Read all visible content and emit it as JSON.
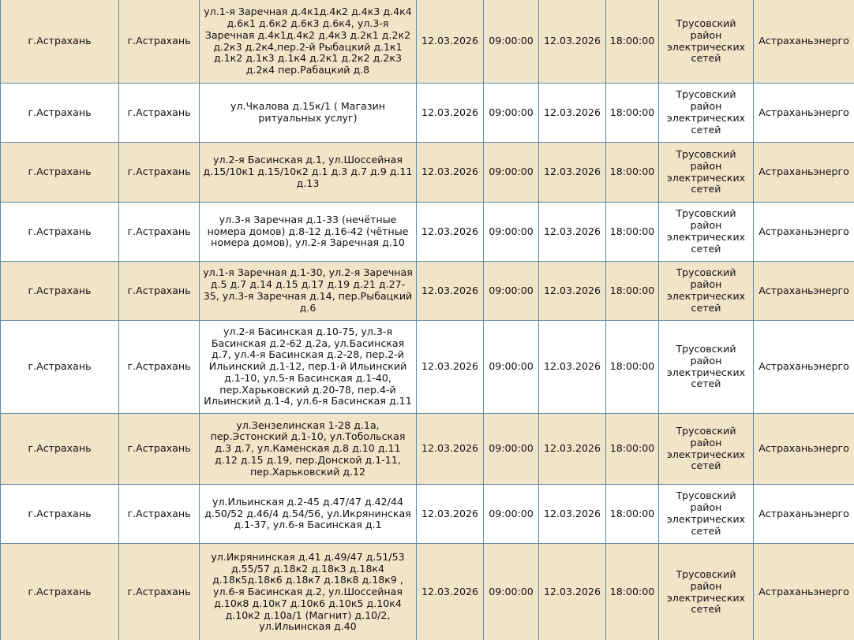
{
  "table": {
    "rows": [
      [
        "г.Астрахань",
        "г.Астрахань",
        "ул.1-я Заречная д.4к1д.4к2 д.4к3 д.4к4 д.6к1 д.6к2 д.6к3 д.6к4, ул.3-я Заречная д.4к1д.4к2 д.4к3 д.2к1 д.2к2 д.2к3 д.2к4,пер.2-й Рыбацкий д.1к1 д.1к2 д.1к3 д.1к4 д.2к1 д.2к2 д.2к3 д.2к4 пер.Рабацкий д.8",
        "12.03.2026",
        "09:00:00",
        "12.03.2026",
        "18:00:00",
        "Трусовский район электрических сетей",
        "Астраханьэнерго"
      ],
      [
        "г.Астрахань",
        "г.Астрахань",
        "ул.Чкалова д.15к/1 ( Магазин ритуальных услуг)",
        "12.03.2026",
        "09:00:00",
        "12.03.2026",
        "18:00:00",
        "Трусовский район электрических сетей",
        "Астраханьэнерго"
      ],
      [
        "г.Астрахань",
        "г.Астрахань",
        "ул.2-я Басинская д.1, ул.Шоссейная д.15/10к1 д.15/10к2 д.1 д.3 д.7 д.9 д.11 д.13",
        "12.03.2026",
        "09:00:00",
        "12.03.2026",
        "18:00:00",
        "Трусовский район электрических сетей",
        "Астраханьэнерго"
      ],
      [
        "г.Астрахань",
        "г.Астрахань",
        "ул.3-я Заречная д.1-33 (нечётные номера домов) д.8-12 д.16-42 (чётные номера домов), ул.2-я Заречная д.10",
        "12.03.2026",
        "09:00:00",
        "12.03.2026",
        "18:00:00",
        "Трусовский район электрических сетей",
        "Астраханьэнерго"
      ],
      [
        "г.Астрахань",
        "г.Астрахань",
        "ул.1-я Заречная д.1-30, ул.2-я Заречная д.5 д.7 д.14 д.15 д.17 д.19 д.21 д.27-35, ул.3-я Заречная д.14, пер.Рыбацкий д.6",
        "12.03.2026",
        "09:00:00",
        "12.03.2026",
        "18:00:00",
        "Трусовский район электрических сетей",
        "Астраханьэнерго"
      ],
      [
        "г.Астрахань",
        "г.Астрахань",
        "ул.2-я Басинская д.10-75, ул.3-я Басинская д.2-62 д.2а, ул.Басинская д.7, ул.4-я Басинская д.2-28, пер.2-й Ильинский д.1-12, пер.1-й Ильинский д.1-10, ул.5-я Басинская д.1-40, пер.Харьковский д.20-78, пер.4-й Ильинский д.1-4, ул.6-я Басинская д.11",
        "12.03.2026",
        "09:00:00",
        "12.03.2026",
        "18:00:00",
        "Трусовский район электрических сетей",
        "Астраханьэнерго"
      ],
      [
        "г.Астрахань",
        "г.Астрахань",
        "ул.Зензелинская 1-28 д.1а, пер.Эстонский д.1-10, ул.Тобольская д.3 д.7, ул.Каменская д.8 д.10 д.11 д.12 д.15 д.19, пер.Донской д.1-11, пер.Харьковский д.12",
        "12.03.2026",
        "09:00:00",
        "12.03.2026",
        "18:00:00",
        "Трусовский район электрических сетей",
        "Астраханьэнерго"
      ],
      [
        "г.Астрахань",
        "г.Астрахань",
        "ул.Ильинская д.2-45 д.47/47 д.42/44 д.50/52 д.46/4 д.54/56, ул.Икрянинская д.1-37, ул.6-я Басинская д.1",
        "12.03.2026",
        "09:00:00",
        "12.03.2026",
        "18:00:00",
        "Трусовский район электрических сетей",
        "Астраханьэнерго"
      ],
      [
        "г.Астрахань",
        "г.Астрахань",
        "ул.Икрянинская д.41 д.49/47 д.51/53 д.55/57 д.18к2 д.18к3 д.18к4 д.18к5д.18к6 д.18к7 д.18к8 д.18к9 , ул.6-я Басинская д.2, ул.Шоссейная д.10к8 д.10к7 д.10к6 д.10к5 д.10к4 д.10к2 д.10а/1 (Магнит) д.10/2, ул.Ильинская д.40",
        "12.03.2026",
        "09:00:00",
        "12.03.2026",
        "18:00:00",
        "Трусовский район электрических сетей",
        "Астраханьэнерго"
      ]
    ]
  }
}
